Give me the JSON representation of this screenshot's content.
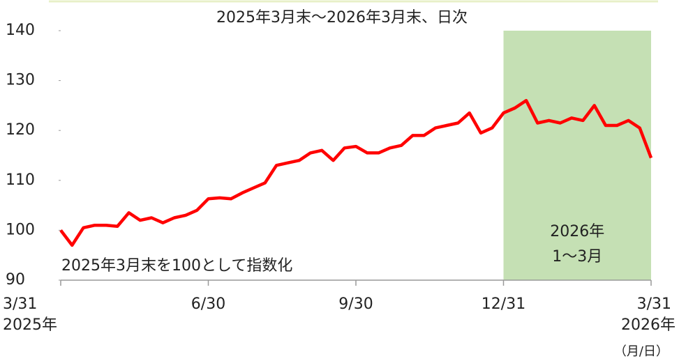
{
  "chart_data": {
    "type": "line",
    "title": "2025年3月末～2026年3月末、日次",
    "annotation": "2025年3月末を100として指数化",
    "categories": [
      "3/31",
      null,
      null,
      null,
      null,
      null,
      null,
      null,
      null,
      null,
      null,
      null,
      null,
      "6/30",
      null,
      null,
      null,
      null,
      null,
      null,
      null,
      null,
      null,
      null,
      null,
      null,
      "9/30",
      null,
      null,
      null,
      null,
      null,
      null,
      null,
      null,
      null,
      null,
      null,
      null,
      "12/31",
      null,
      null,
      null,
      null,
      null,
      null,
      null,
      null,
      null,
      null,
      null,
      null,
      "3/31"
    ],
    "year_labels": [
      {
        "category": 0,
        "label": "2025年"
      },
      {
        "category": 52,
        "label": "2026年"
      }
    ],
    "x_unit": "（月/日）",
    "series": [
      {
        "name": "指数",
        "color": "#ff0000",
        "values": [
          100,
          97,
          100.5,
          101,
          101,
          100.8,
          103.5,
          102,
          102.5,
          101.5,
          102.5,
          103,
          104,
          106.3,
          106.5,
          106.3,
          107.5,
          108.5,
          109.5,
          113,
          113.5,
          114,
          115.5,
          116,
          114,
          116.5,
          116.8,
          115.5,
          115.5,
          116.5,
          117,
          119,
          119,
          120.5,
          121,
          121.5,
          123.5,
          119.5,
          120.5,
          123.5,
          124.5,
          126,
          121.5,
          122,
          121.5,
          122.5,
          122,
          125,
          121,
          121,
          122,
          120.5,
          114.5
        ]
      }
    ],
    "highlight": {
      "from": "12/31",
      "color": "#c5e0b4",
      "label": [
        "2026年",
        "1～3月"
      ]
    },
    "ylim": [
      90,
      140
    ],
    "yticks": [
      90,
      100,
      110,
      120,
      130,
      140
    ]
  }
}
